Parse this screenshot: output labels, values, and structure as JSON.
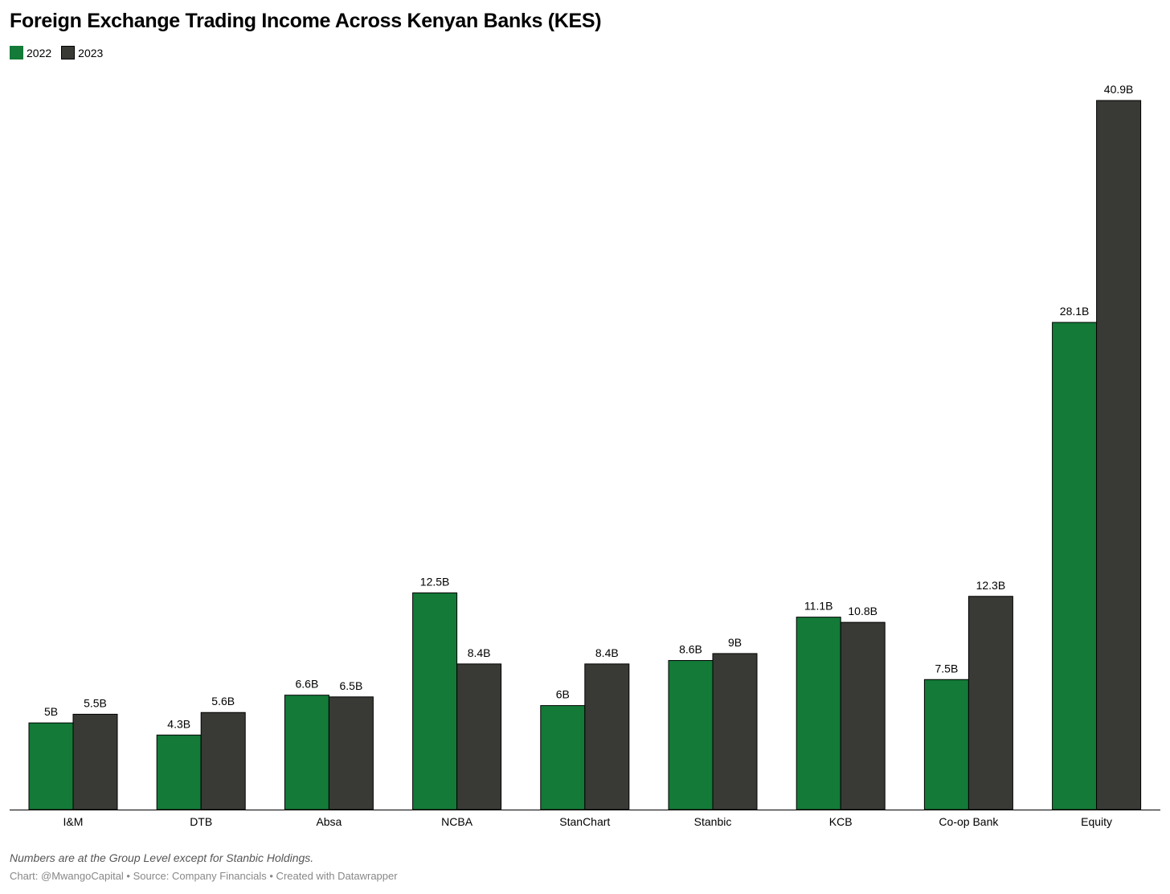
{
  "title": "Foreign Exchange Trading Income Across Kenyan Banks (KES)",
  "note": "Numbers are at the Group Level except for Stanbic Holdings.",
  "credits": "Chart: @MwangoCapital • Source: Company Financials • Created with Datawrapper",
  "colors": {
    "series_2022": "#137a38",
    "series_2023": "#393a35",
    "axis": "#000000"
  },
  "chart_data": {
    "type": "bar",
    "title": "Foreign Exchange Trading Income Across Kenyan Banks (KES)",
    "xlabel": "",
    "ylabel": "",
    "ylim": [
      0,
      40.9
    ],
    "grid": false,
    "legend_position": "top-left",
    "unit_suffix": "B",
    "categories": [
      "I&M",
      "DTB",
      "Absa",
      "NCBA",
      "StanChart",
      "Stanbic",
      "KCB",
      "Co-op Bank",
      "Equity"
    ],
    "series": [
      {
        "name": "2022",
        "color": "#137a38",
        "values": [
          5,
          4.3,
          6.6,
          12.5,
          6,
          8.6,
          11.1,
          7.5,
          28.1
        ],
        "labels": [
          "5B",
          "4.3B",
          "6.6B",
          "12.5B",
          "6B",
          "8.6B",
          "11.1B",
          "7.5B",
          "28.1B"
        ]
      },
      {
        "name": "2023",
        "color": "#393a35",
        "values": [
          5.5,
          5.6,
          6.5,
          8.4,
          8.4,
          9,
          10.8,
          12.3,
          40.9
        ],
        "labels": [
          "5.5B",
          "5.6B",
          "6.5B",
          "8.4B",
          "8.4B",
          "9B",
          "10.8B",
          "12.3B",
          "40.9B"
        ]
      }
    ]
  }
}
